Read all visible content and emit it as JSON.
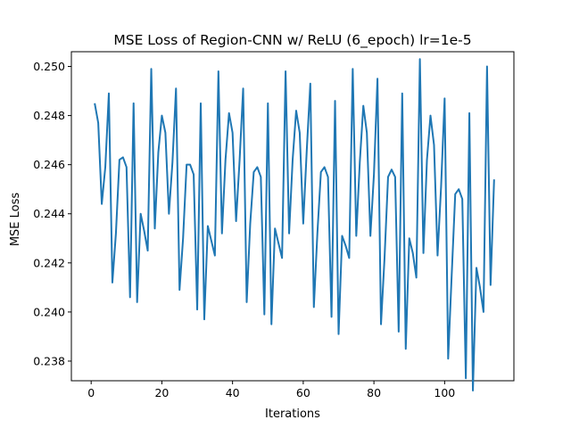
{
  "chart_data": {
    "type": "line",
    "title": "MSE Loss of Region-CNN w/ ReLU (6_epoch) lr=1e-5",
    "xlabel": "Iterations",
    "ylabel": "MSE Loss",
    "xlim": [
      -5.6,
      119.6
    ],
    "ylim": [
      0.2372,
      0.2506
    ],
    "xticks": [
      0,
      20,
      40,
      60,
      80,
      100
    ],
    "xtick_labels": [
      "0",
      "20",
      "40",
      "60",
      "80",
      "100"
    ],
    "yticks": [
      0.238,
      0.24,
      0.242,
      0.244,
      0.246,
      0.248,
      0.25
    ],
    "ytick_labels": [
      "0.238",
      "0.240",
      "0.242",
      "0.244",
      "0.246",
      "0.248",
      "0.250"
    ],
    "grid": false,
    "series": [
      {
        "color": "#1f77b4",
        "x": [
          1,
          2,
          3,
          4,
          5,
          6,
          7,
          8,
          9,
          10,
          11,
          12,
          13,
          14,
          15,
          16,
          17,
          18,
          19,
          20,
          21,
          22,
          23,
          24,
          25,
          26,
          27,
          28,
          29,
          30,
          31,
          32,
          33,
          34,
          35,
          36,
          37,
          38,
          39,
          40,
          41,
          42,
          43,
          44,
          45,
          46,
          47,
          48,
          49,
          50,
          51,
          52,
          53,
          54,
          55,
          56,
          57,
          58,
          59,
          60,
          61,
          62,
          63,
          64,
          65,
          66,
          67,
          68,
          69,
          70,
          71,
          72,
          73,
          74,
          75,
          76,
          77,
          78,
          79,
          80,
          81,
          82,
          83,
          84,
          85,
          86,
          87,
          88,
          89,
          90,
          91,
          92,
          93,
          94,
          95,
          96,
          97,
          98,
          99,
          100,
          101,
          102,
          103,
          104,
          105,
          106,
          107,
          108,
          109,
          110,
          111,
          112,
          113,
          114
        ],
        "y": [
          0.2485,
          0.2477,
          0.2444,
          0.2459,
          0.2489,
          0.2412,
          0.2432,
          0.2462,
          0.2463,
          0.2459,
          0.2406,
          0.2485,
          0.2404,
          0.244,
          0.2433,
          0.2425,
          0.2499,
          0.2434,
          0.2465,
          0.248,
          0.2473,
          0.244,
          0.2461,
          0.2491,
          0.2409,
          0.243,
          0.246,
          0.246,
          0.2456,
          0.2401,
          0.2485,
          0.2397,
          0.2435,
          0.2429,
          0.2423,
          0.2498,
          0.2432,
          0.2462,
          0.2481,
          0.2473,
          0.2437,
          0.2462,
          0.2491,
          0.2404,
          0.2436,
          0.2457,
          0.2459,
          0.2455,
          0.2399,
          0.2485,
          0.2395,
          0.2434,
          0.2428,
          0.2422,
          0.2498,
          0.2432,
          0.2462,
          0.2482,
          0.2473,
          0.2436,
          0.2466,
          0.2493,
          0.2402,
          0.2432,
          0.2457,
          0.2459,
          0.2455,
          0.2398,
          0.2486,
          0.2391,
          0.2431,
          0.2427,
          0.2422,
          0.2499,
          0.2431,
          0.2461,
          0.2484,
          0.2473,
          0.2431,
          0.2456,
          0.2495,
          0.2395,
          0.2422,
          0.2455,
          0.2458,
          0.2455,
          0.2392,
          0.2489,
          0.2385,
          0.243,
          0.2424,
          0.2414,
          0.2503,
          0.2424,
          0.2462,
          0.248,
          0.2468,
          0.2423,
          0.2451,
          0.2487,
          0.2381,
          0.2415,
          0.2448,
          0.245,
          0.2446,
          0.2373,
          0.2481,
          0.2368,
          0.2418,
          0.241,
          0.24,
          0.25,
          0.2411,
          0.2454
        ]
      }
    ]
  }
}
